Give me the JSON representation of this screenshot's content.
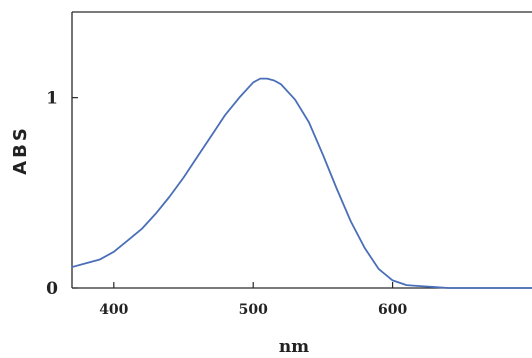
{
  "chart_data": {
    "type": "line",
    "title": "",
    "xlabel": "nm",
    "ylabel": "ABS",
    "xlim": [
      370,
      700
    ],
    "ylim": [
      0,
      1.45
    ],
    "x_ticks": [
      400,
      500,
      600
    ],
    "x_tick_labels": [
      "400",
      "500",
      "600"
    ],
    "y_ticks": [
      0,
      1
    ],
    "y_tick_labels": [
      "0",
      "1"
    ],
    "grid": false,
    "legend": "none",
    "series": [
      {
        "color": "#4a6fb8",
        "x": [
          370,
          380,
          390,
          400,
          410,
          420,
          430,
          440,
          450,
          460,
          470,
          480,
          490,
          500,
          505,
          510,
          515,
          520,
          530,
          540,
          550,
          560,
          570,
          580,
          590,
          600,
          610,
          620,
          630,
          640,
          650,
          660,
          680,
          700
        ],
        "y": [
          0.11,
          0.13,
          0.15,
          0.19,
          0.25,
          0.31,
          0.39,
          0.48,
          0.58,
          0.69,
          0.8,
          0.91,
          1.0,
          1.08,
          1.1,
          1.1,
          1.09,
          1.07,
          0.99,
          0.87,
          0.7,
          0.52,
          0.35,
          0.21,
          0.1,
          0.04,
          0.015,
          0.01,
          0.005,
          0.0,
          0.0,
          0.0,
          0.0,
          0.0
        ]
      }
    ]
  }
}
